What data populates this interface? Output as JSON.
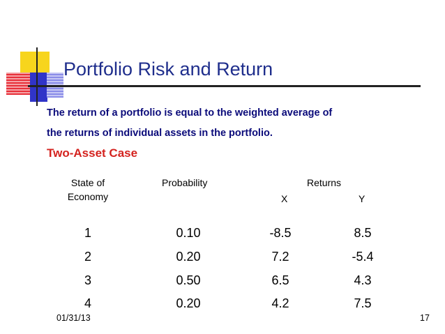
{
  "slide": {
    "title": "Portfolio Risk and Return",
    "intro_line1": "The return of a portfolio is equal to the weighted average of",
    "intro_line2": "the returns of individual assets in the portfolio.",
    "subheading": "Two-Asset Case"
  },
  "table": {
    "headers": {
      "state_line1": "State of",
      "state_line2": "Economy",
      "probability": "Probability",
      "returns": "Returns",
      "x": "X",
      "y": "Y"
    },
    "rows": [
      {
        "state": "1",
        "probability": "0.10",
        "x": "-8.5",
        "y": "8.5"
      },
      {
        "state": "2",
        "probability": "0.20",
        "x": "7.2",
        "y": "-5.4"
      },
      {
        "state": "3",
        "probability": "0.50",
        "x": "6.5",
        "y": "4.3"
      },
      {
        "state": "4",
        "probability": "0.20",
        "x": "4.2",
        "y": "7.5"
      }
    ]
  },
  "footer": {
    "date": "01/31/13",
    "page": "17"
  },
  "colors": {
    "title": "#1f2e8c",
    "intro": "#0b0b7a",
    "subheading": "#d4231f"
  }
}
